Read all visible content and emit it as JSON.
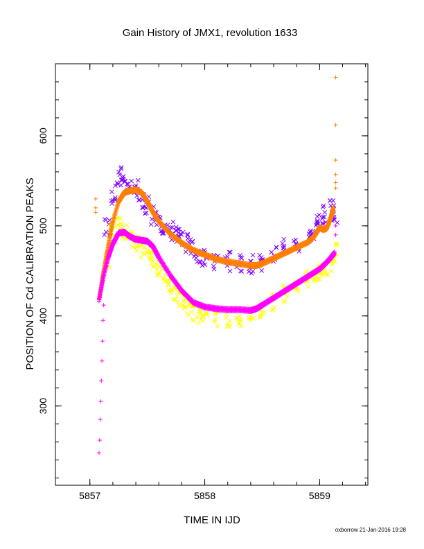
{
  "chart_data": {
    "type": "scatter",
    "title": "Gain History of JMX1, revolution 1633",
    "xlabel": "TIME IN IJD",
    "ylabel": "POSITION OF Cd CALIBRATION PEAKS",
    "xlim": [
      5856.7,
      5859.42
    ],
    "ylim": [
      212,
      680
    ],
    "x_ticks": [
      5857,
      5858,
      5859
    ],
    "x_tick_labels": [
      "5857",
      "5858",
      "5859"
    ],
    "y_ticks": [
      300,
      400,
      500,
      600
    ],
    "y_tick_labels": [
      "300",
      "400",
      "500",
      "600"
    ],
    "grid": false,
    "series": [
      {
        "color": "#7f00ff",
        "marker": "x",
        "scatter": true,
        "x": [
          5857.15,
          5857.2,
          5857.25,
          5857.3,
          5857.35,
          5857.4,
          5857.45,
          5857.5,
          5857.55,
          5857.6,
          5857.65,
          5857.7,
          5857.75,
          5857.8,
          5857.85,
          5857.9,
          5857.95,
          5858.0,
          5858.1,
          5858.2,
          5858.3,
          5858.4,
          5858.5,
          5858.6,
          5858.7,
          5858.8,
          5858.9,
          5858.95,
          5859.0,
          5859.05,
          5859.1,
          5859.13
        ],
        "y": [
          500,
          535,
          555,
          550,
          548,
          540,
          530,
          522,
          512,
          505,
          500,
          495,
          490,
          486,
          482,
          475,
          470,
          466,
          462,
          460,
          458,
          457,
          460,
          468,
          475,
          482,
          488,
          495,
          505,
          512,
          518,
          510
        ]
      },
      {
        "color": "#ffff00",
        "marker": "x",
        "scatter": true,
        "x": [
          5857.15,
          5857.2,
          5857.25,
          5857.3,
          5857.35,
          5857.4,
          5857.45,
          5857.5,
          5857.55,
          5857.6,
          5857.65,
          5857.7,
          5857.75,
          5857.8,
          5857.85,
          5857.9,
          5857.95,
          5858.0,
          5858.1,
          5858.2,
          5858.3,
          5858.4,
          5858.5,
          5858.6,
          5858.7,
          5858.8,
          5858.9,
          5858.95,
          5859.0,
          5859.05,
          5859.1,
          5859.13
        ],
        "y": [
          460,
          495,
          500,
          492,
          485,
          480,
          475,
          470,
          462,
          455,
          445,
          435,
          425,
          418,
          410,
          405,
          402,
          400,
          398,
          397,
          398,
          400,
          405,
          415,
          425,
          432,
          440,
          445,
          450,
          455,
          460,
          470
        ]
      },
      {
        "color": "#ff7f00",
        "marker": "+",
        "scatter": false,
        "x": [
          5857.08,
          5857.12,
          5857.16,
          5857.2,
          5857.25,
          5857.3,
          5857.35,
          5857.4,
          5857.45,
          5857.5,
          5857.55,
          5857.6,
          5857.7,
          5857.8,
          5857.9,
          5858.0,
          5858.1,
          5858.2,
          5858.3,
          5858.4,
          5858.45,
          5858.5,
          5858.6,
          5858.7,
          5858.8,
          5858.9,
          5858.95,
          5859.0,
          5859.03,
          5859.06,
          5859.1,
          5859.12
        ],
        "y": [
          418,
          450,
          478,
          505,
          527,
          537,
          539,
          540,
          537,
          527,
          515,
          505,
          491,
          481,
          473,
          468,
          463,
          460,
          458,
          456,
          456,
          458,
          464,
          470,
          476,
          482,
          488,
          498,
          496,
          497,
          510,
          520
        ]
      },
      {
        "color": "#ff7f00",
        "marker": "+",
        "scatter": true,
        "x": [
          5857.05,
          5857.05,
          5857.05,
          5859.14,
          5859.14,
          5859.14,
          5859.14,
          5859.14,
          5859.14
        ],
        "y": [
          530,
          520,
          515,
          665,
          612,
          573,
          557,
          548,
          542
        ]
      },
      {
        "color": "#ff00ff",
        "marker": "+",
        "scatter": false,
        "x": [
          5857.08,
          5857.12,
          5857.16,
          5857.2,
          5857.25,
          5857.3,
          5857.35,
          5857.4,
          5857.45,
          5857.5,
          5857.55,
          5857.6,
          5857.7,
          5857.8,
          5857.9,
          5858.0,
          5858.1,
          5858.2,
          5858.3,
          5858.4,
          5858.45,
          5858.5,
          5858.6,
          5858.7,
          5858.8,
          5858.9,
          5859.0,
          5859.05,
          5859.1,
          5859.13
        ],
        "y": [
          418,
          445,
          465,
          480,
          492,
          493,
          488,
          485,
          484,
          483,
          477,
          465,
          445,
          428,
          415,
          410,
          408,
          407,
          407,
          406,
          408,
          412,
          420,
          428,
          436,
          444,
          452,
          458,
          465,
          470
        ]
      },
      {
        "color": "#ff00ff",
        "marker": "+",
        "scatter": true,
        "x": [
          5857.08,
          5857.085,
          5857.09,
          5857.095,
          5857.1,
          5857.105,
          5857.11,
          5857.115,
          5857.12,
          5859.14,
          5859.14
        ],
        "y": [
          248,
          262,
          285,
          305,
          328,
          350,
          372,
          395,
          412,
          490,
          500
        ]
      }
    ]
  },
  "footer": "oxborrow 21-Jan-2016 19:28"
}
